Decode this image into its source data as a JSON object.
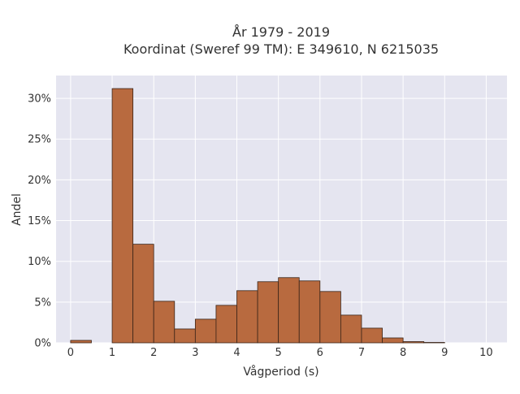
{
  "chart_data": {
    "type": "bar",
    "title": "År 1979 - 2019",
    "subtitle": "Koordinat (Sweref 99 TM): E 349610, N 6215035",
    "xlabel": "Vågperiod (s)",
    "ylabel": "Andel",
    "xlim": [
      -0.35,
      10.5
    ],
    "ylim": [
      0,
      32.8
    ],
    "x_ticks": [
      0,
      1,
      2,
      3,
      4,
      5,
      6,
      7,
      8,
      9,
      10
    ],
    "y_ticks": [
      0,
      5,
      10,
      15,
      20,
      25,
      30
    ],
    "y_tick_labels": [
      "0%",
      "5%",
      "10%",
      "15%",
      "20%",
      "25%",
      "30%"
    ],
    "bin_width": 0.5,
    "bins": [
      {
        "start": 0.0,
        "value": 0.3
      },
      {
        "start": 0.5,
        "value": 0.0
      },
      {
        "start": 1.0,
        "value": 31.2
      },
      {
        "start": 1.5,
        "value": 12.1
      },
      {
        "start": 2.0,
        "value": 5.1
      },
      {
        "start": 2.5,
        "value": 1.7
      },
      {
        "start": 3.0,
        "value": 2.9
      },
      {
        "start": 3.5,
        "value": 4.6
      },
      {
        "start": 4.0,
        "value": 6.4
      },
      {
        "start": 4.5,
        "value": 7.5
      },
      {
        "start": 5.0,
        "value": 8.0
      },
      {
        "start": 5.5,
        "value": 7.6
      },
      {
        "start": 6.0,
        "value": 6.3
      },
      {
        "start": 6.5,
        "value": 3.4
      },
      {
        "start": 7.0,
        "value": 1.8
      },
      {
        "start": 7.5,
        "value": 0.6
      },
      {
        "start": 8.0,
        "value": 0.15
      },
      {
        "start": 8.5,
        "value": 0.05
      }
    ],
    "grid": true,
    "colors": {
      "bar_fill": "#b86a3f",
      "bar_stroke": "#3a2418",
      "plot_bg": "#e5e5f0",
      "grid": "#ffffff"
    }
  }
}
